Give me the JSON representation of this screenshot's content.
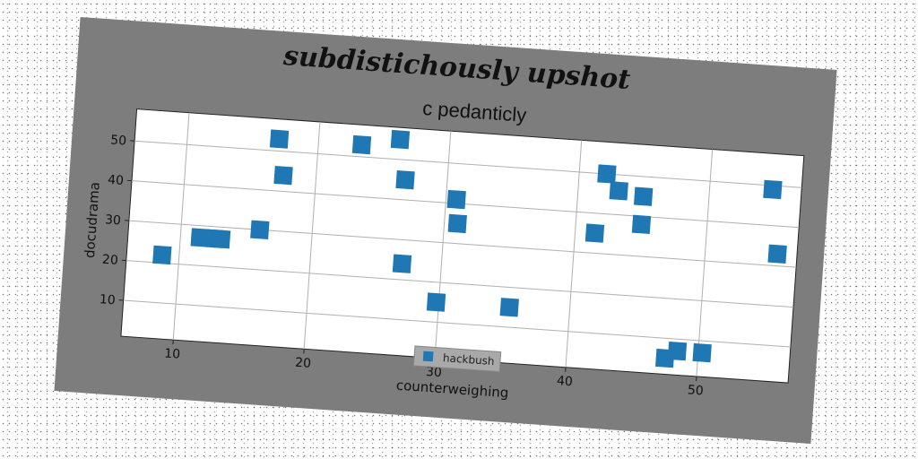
{
  "chart_data": {
    "type": "scatter",
    "title": "subdistichously upshot",
    "subtitle": "c pedanticly",
    "xlabel": "counterweighing",
    "ylabel": "docudrama",
    "xlim": [
      6,
      57
    ],
    "ylim": [
      1,
      58
    ],
    "xticks": [
      10,
      20,
      30,
      40,
      50
    ],
    "yticks": [
      10,
      20,
      30,
      40,
      50
    ],
    "grid": true,
    "legend_position": "bottom-center",
    "colors": {
      "marker": "#1f77b4",
      "figure_bg": "#7d7d7d",
      "axes_bg": "#ffffff",
      "grid": "#b0b0b0"
    },
    "series": [
      {
        "name": "hackbush",
        "x": [
          8.7,
          11.5,
          12.6,
          13.1,
          16.0,
          17.0,
          17.5,
          23.3,
          26.2,
          26.8,
          27.0,
          29.8,
          30.8,
          31.0,
          35.4,
          41.5,
          42.1,
          43.1,
          45.0,
          45.0,
          47.5,
          48.4,
          50.3,
          54.8,
          55.5
        ],
        "y": [
          22,
          27,
          27,
          27,
          30,
          53,
          44,
          53,
          55,
          45,
          24,
          15,
          41,
          35,
          15,
          35,
          50,
          46,
          45,
          38,
          5,
          7,
          7,
          49,
          33
        ]
      }
    ]
  }
}
